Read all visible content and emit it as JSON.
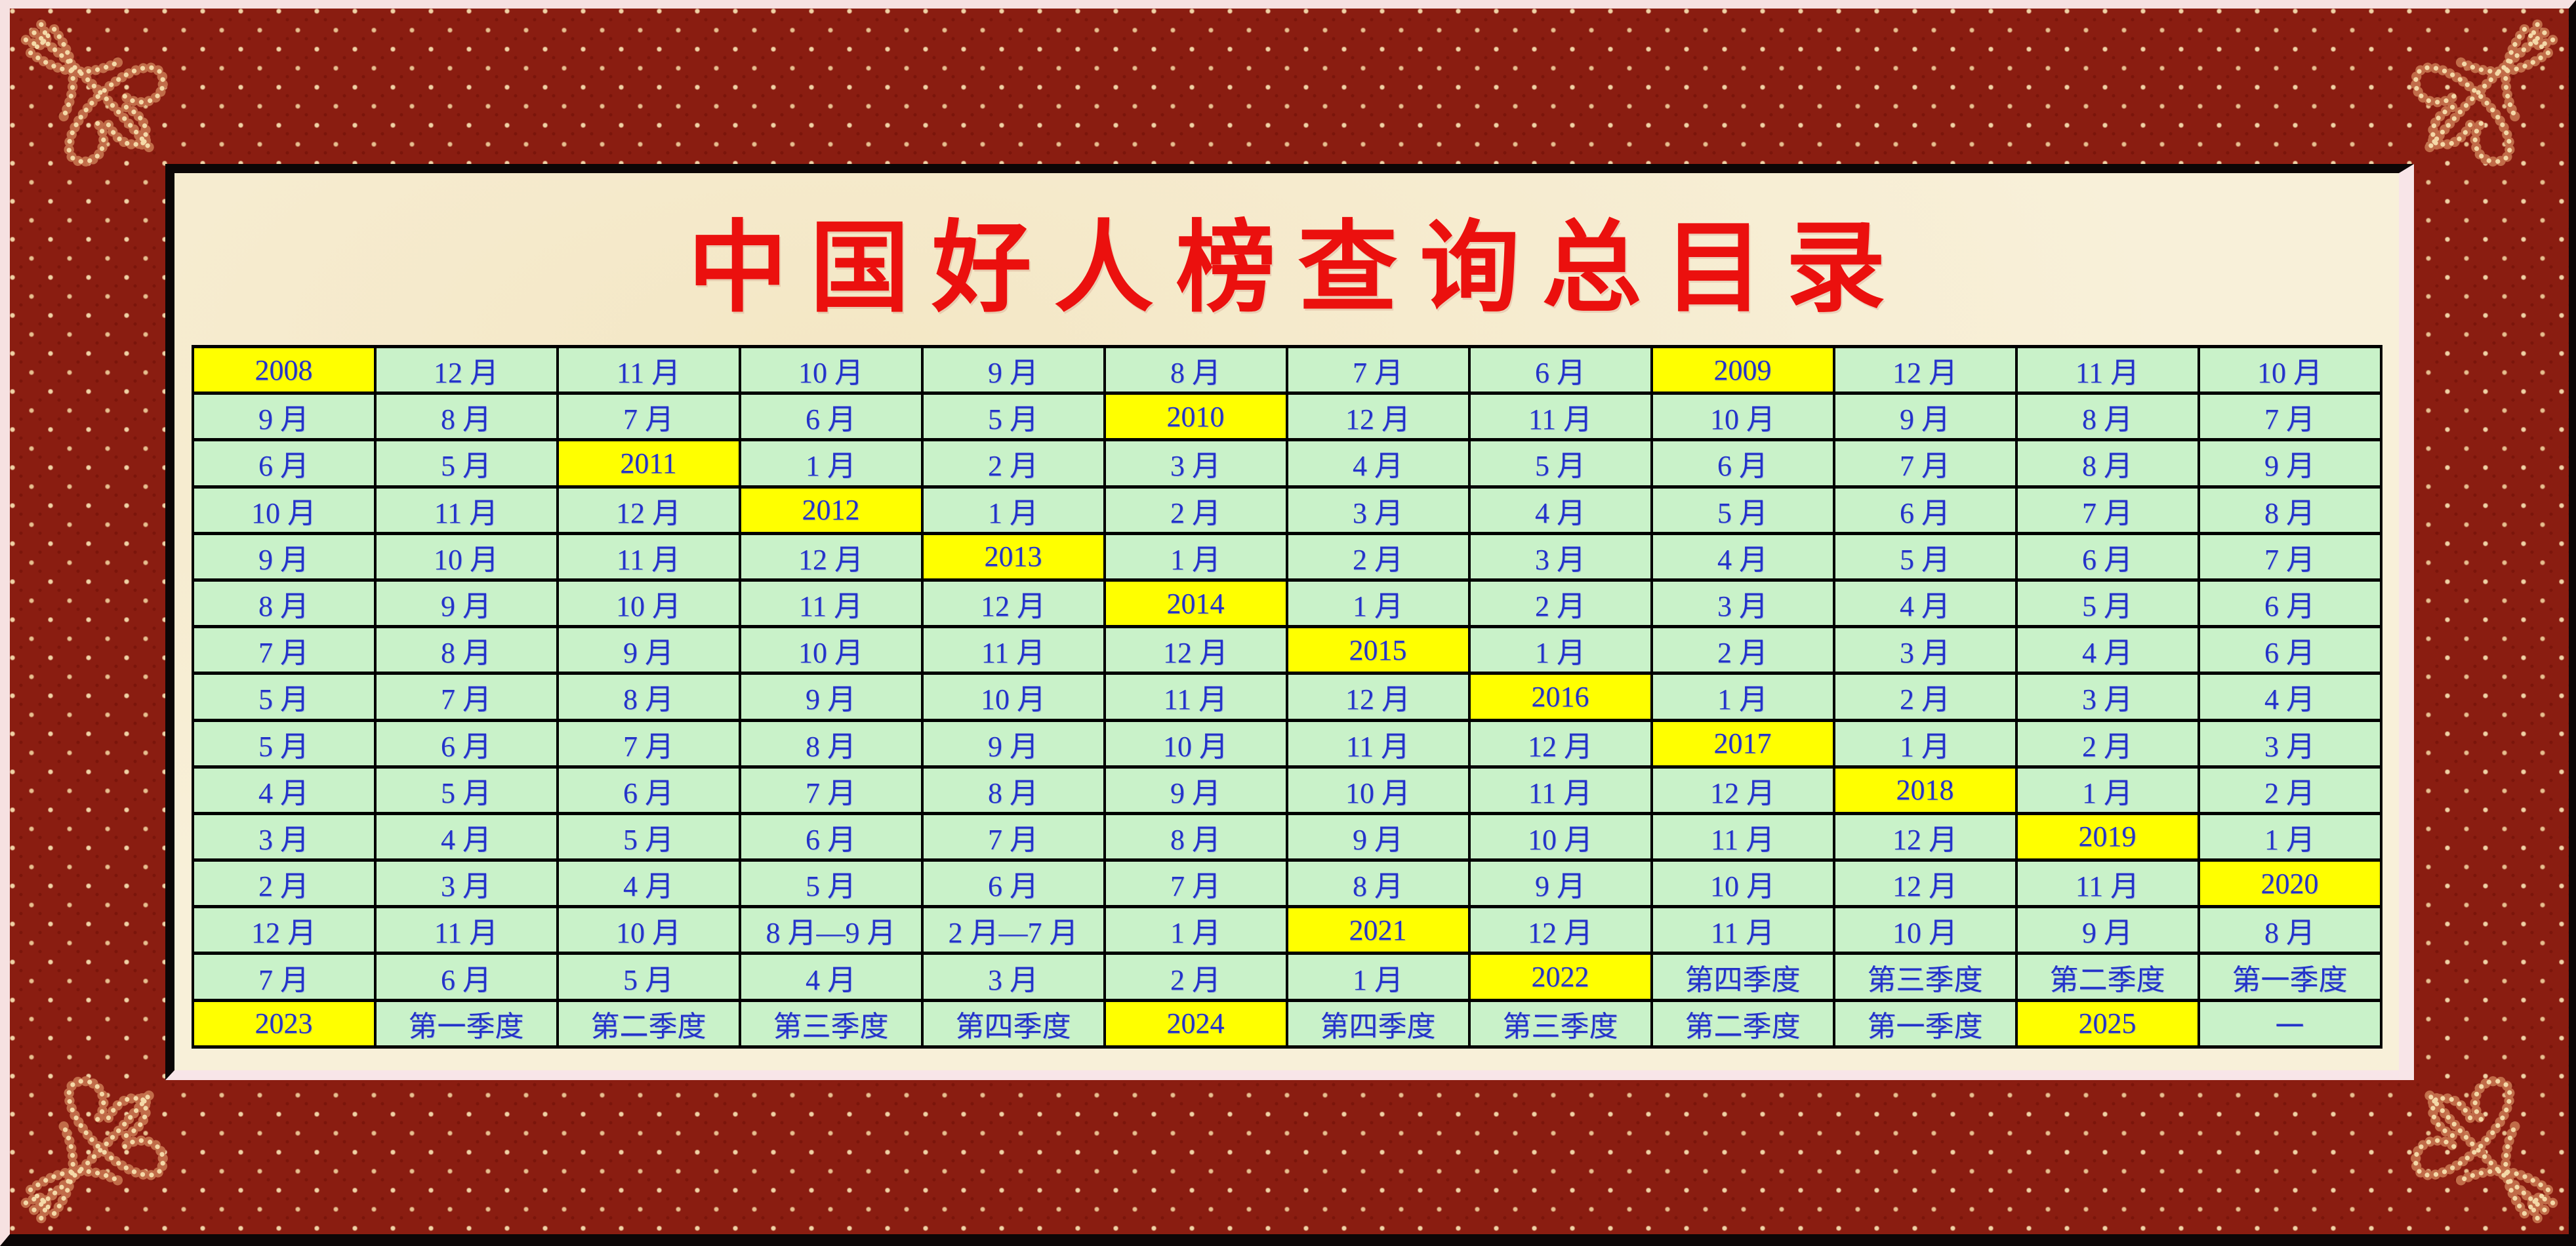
{
  "page": {
    "title": "中国好人榜查询总目录"
  },
  "colors": {
    "frame_maroon": "#8a1d11",
    "frame_dot_gold": "#f0d3a6",
    "outer_edge_light_pink": "#f6e1e1",
    "outer_edge_dark": "#0c0606",
    "panel_bevel_dark": "#0b0606",
    "panel_bevel_light_pink": "#f8e5e8",
    "panel_cream_bg": "#f8f0d9",
    "cell_green_bg": "#c9f2c9",
    "year_highlight_yellow": "#ffff00",
    "cell_text_blue": "#2433c9",
    "title_red": "#eb100e",
    "grid_line_black": "#000000"
  },
  "ornaments": {
    "corner_flourish": "gold-beaded-fleur-flourish"
  },
  "directory_table": {
    "rows": [
      [
        "2008",
        "12 月",
        "11 月",
        "10 月",
        "9 月",
        "8 月",
        "7 月",
        "6 月",
        "2009",
        "12 月",
        "11 月",
        "10 月"
      ],
      [
        "9 月",
        "8 月",
        "7 月",
        "6 月",
        "5 月",
        "2010",
        "12 月",
        "11 月",
        "10 月",
        "9 月",
        "8 月",
        "7 月"
      ],
      [
        "6 月",
        "5 月",
        "2011",
        "1 月",
        "2 月",
        "3 月",
        "4 月",
        "5 月",
        "6 月",
        "7 月",
        "8 月",
        "9 月"
      ],
      [
        "10 月",
        "11 月",
        "12 月",
        "2012",
        "1 月",
        "2 月",
        "3 月",
        "4 月",
        "5 月",
        "6 月",
        "7 月",
        "8 月"
      ],
      [
        "9 月",
        "10 月",
        "11 月",
        "12 月",
        "2013",
        "1 月",
        "2 月",
        "3 月",
        "4 月",
        "5 月",
        "6 月",
        "7 月"
      ],
      [
        "8 月",
        "9 月",
        "10 月",
        "11 月",
        "12 月",
        "2014",
        "1 月",
        "2 月",
        "3 月",
        "4 月",
        "5 月",
        "6 月"
      ],
      [
        "7 月",
        "8 月",
        "9 月",
        "10 月",
        "11 月",
        "12 月",
        "2015",
        "1 月",
        "2 月",
        "3 月",
        "4 月",
        "6 月"
      ],
      [
        "5 月",
        "7 月",
        "8 月",
        "9 月",
        "10 月",
        "11 月",
        "12 月",
        "2016",
        "1 月",
        "2 月",
        "3 月",
        "4 月"
      ],
      [
        "5 月",
        "6 月",
        "7 月",
        "8 月",
        "9 月",
        "10 月",
        "11 月",
        "12 月",
        "2017",
        "1 月",
        "2 月",
        "3 月"
      ],
      [
        "4 月",
        "5 月",
        "6 月",
        "7 月",
        "8 月",
        "9 月",
        "10 月",
        "11 月",
        "12 月",
        "2018",
        "1 月",
        "2 月"
      ],
      [
        "3 月",
        "4 月",
        "5 月",
        "6 月",
        "7 月",
        "8 月",
        "9 月",
        "10 月",
        "11 月",
        "12 月",
        "2019",
        "1 月"
      ],
      [
        "2 月",
        "3 月",
        "4 月",
        "5 月",
        "6 月",
        "7 月",
        "8 月",
        "9 月",
        "10 月",
        "12 月",
        "11 月",
        "2020"
      ],
      [
        "12 月",
        "11 月",
        "10 月",
        "8 月—9 月",
        "2 月—7 月",
        "1 月",
        "2021",
        "12 月",
        "11 月",
        "10 月",
        "9 月",
        "8 月"
      ],
      [
        "7 月",
        "6 月",
        "5 月",
        "4 月",
        "3 月",
        "2 月",
        "1 月",
        "2022",
        "第四季度",
        "第三季度",
        "第二季度",
        "第一季度"
      ],
      [
        "2023",
        "第一季度",
        "第二季度",
        "第三季度",
        "第四季度",
        "2024",
        "第四季度",
        "第三季度",
        "第二季度",
        "第一季度",
        "2025",
        "一"
      ]
    ]
  }
}
